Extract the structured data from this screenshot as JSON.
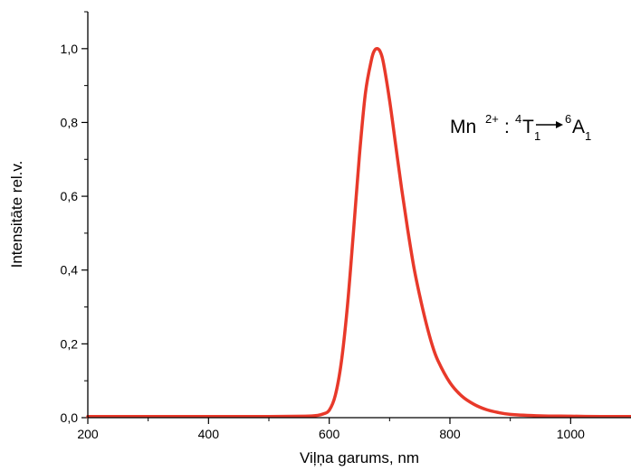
{
  "chart_data": {
    "type": "line",
    "title": "",
    "xlabel": "Viļņa garums, nm",
    "ylabel": "Intensitāte rel.v.",
    "xlim": [
      200,
      1100
    ],
    "ylim": [
      0,
      1.1
    ],
    "x_ticks": [
      200,
      400,
      600,
      800,
      1000
    ],
    "x_tick_labels": [
      "200",
      "400",
      "600",
      "800",
      "1000"
    ],
    "y_ticks": [
      0,
      0.2,
      0.4,
      0.6,
      0.8,
      1.0
    ],
    "y_tick_labels": [
      "0,0",
      "0,2",
      "0,4",
      "0,6",
      "0,8",
      "1,0"
    ],
    "grid": false,
    "line_color": "#e8392a",
    "annotation": {
      "ion": "Mn",
      "charge": "2+",
      "colon": ":",
      "initial_sup": "4",
      "initial_term": "T",
      "initial_sub": "1",
      "final_sup": "6",
      "final_term": "A",
      "final_sub": "1"
    },
    "series": [
      {
        "x": [
          200,
          300,
          400,
          500,
          560,
          580,
          590,
          600,
          610,
          620,
          630,
          640,
          650,
          660,
          670,
          675,
          680,
          685,
          690,
          700,
          710,
          720,
          730,
          740,
          750,
          760,
          770,
          780,
          800,
          820,
          840,
          860,
          880,
          900,
          950,
          1000,
          1050,
          1100
        ],
        "y": [
          0.003,
          0.003,
          0.003,
          0.003,
          0.004,
          0.006,
          0.01,
          0.02,
          0.06,
          0.15,
          0.3,
          0.5,
          0.71,
          0.88,
          0.97,
          0.995,
          1.0,
          0.99,
          0.96,
          0.86,
          0.74,
          0.62,
          0.51,
          0.41,
          0.33,
          0.26,
          0.2,
          0.155,
          0.095,
          0.058,
          0.036,
          0.022,
          0.014,
          0.009,
          0.005,
          0.004,
          0.003,
          0.003
        ]
      }
    ]
  }
}
